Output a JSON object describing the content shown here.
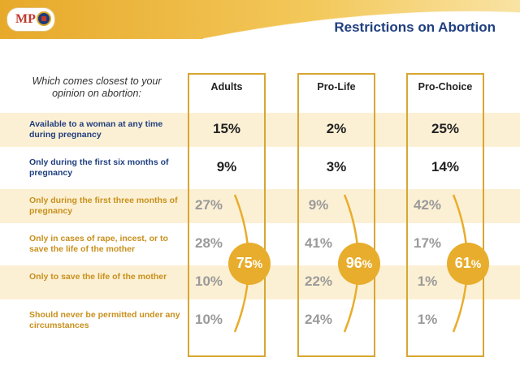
{
  "header": {
    "logo_text": "MP",
    "title": "Restrictions on Abortion"
  },
  "chart_data": {
    "type": "table",
    "question": "Which comes closest to your opinion on abortion:",
    "columns": [
      "Adults",
      "Pro-Life",
      "Pro-Choice"
    ],
    "rows": [
      "Available to a woman at any time during pregnancy",
      "Only during the first six months of pregnancy",
      "Only during the first three months of pregnancy",
      "Only in cases of rape, incest, or to save the life of the mother",
      "Only to save the life of the mother",
      "Should never be permitted under any circumstances"
    ],
    "values": [
      [
        "15%",
        "2%",
        "25%"
      ],
      [
        "9%",
        "3%",
        "14%"
      ],
      [
        "27%",
        "9%",
        "42%"
      ],
      [
        "28%",
        "41%",
        "17%"
      ],
      [
        "10%",
        "22%",
        "1%"
      ],
      [
        "10%",
        "24%",
        "1%"
      ]
    ],
    "totals": [
      "75",
      "96",
      "61"
    ],
    "totals_unit": "%",
    "totals_rows": [
      2,
      5
    ]
  },
  "colors": {
    "accent": "#e8ad2c",
    "border": "#d8a633",
    "band": "#fcf0d4",
    "title": "#1f3f7f",
    "label_blue": "#1f3f7f",
    "label_gold": "#c8901c",
    "value_dark": "#222222",
    "value_gray": "#9a9a9a"
  }
}
